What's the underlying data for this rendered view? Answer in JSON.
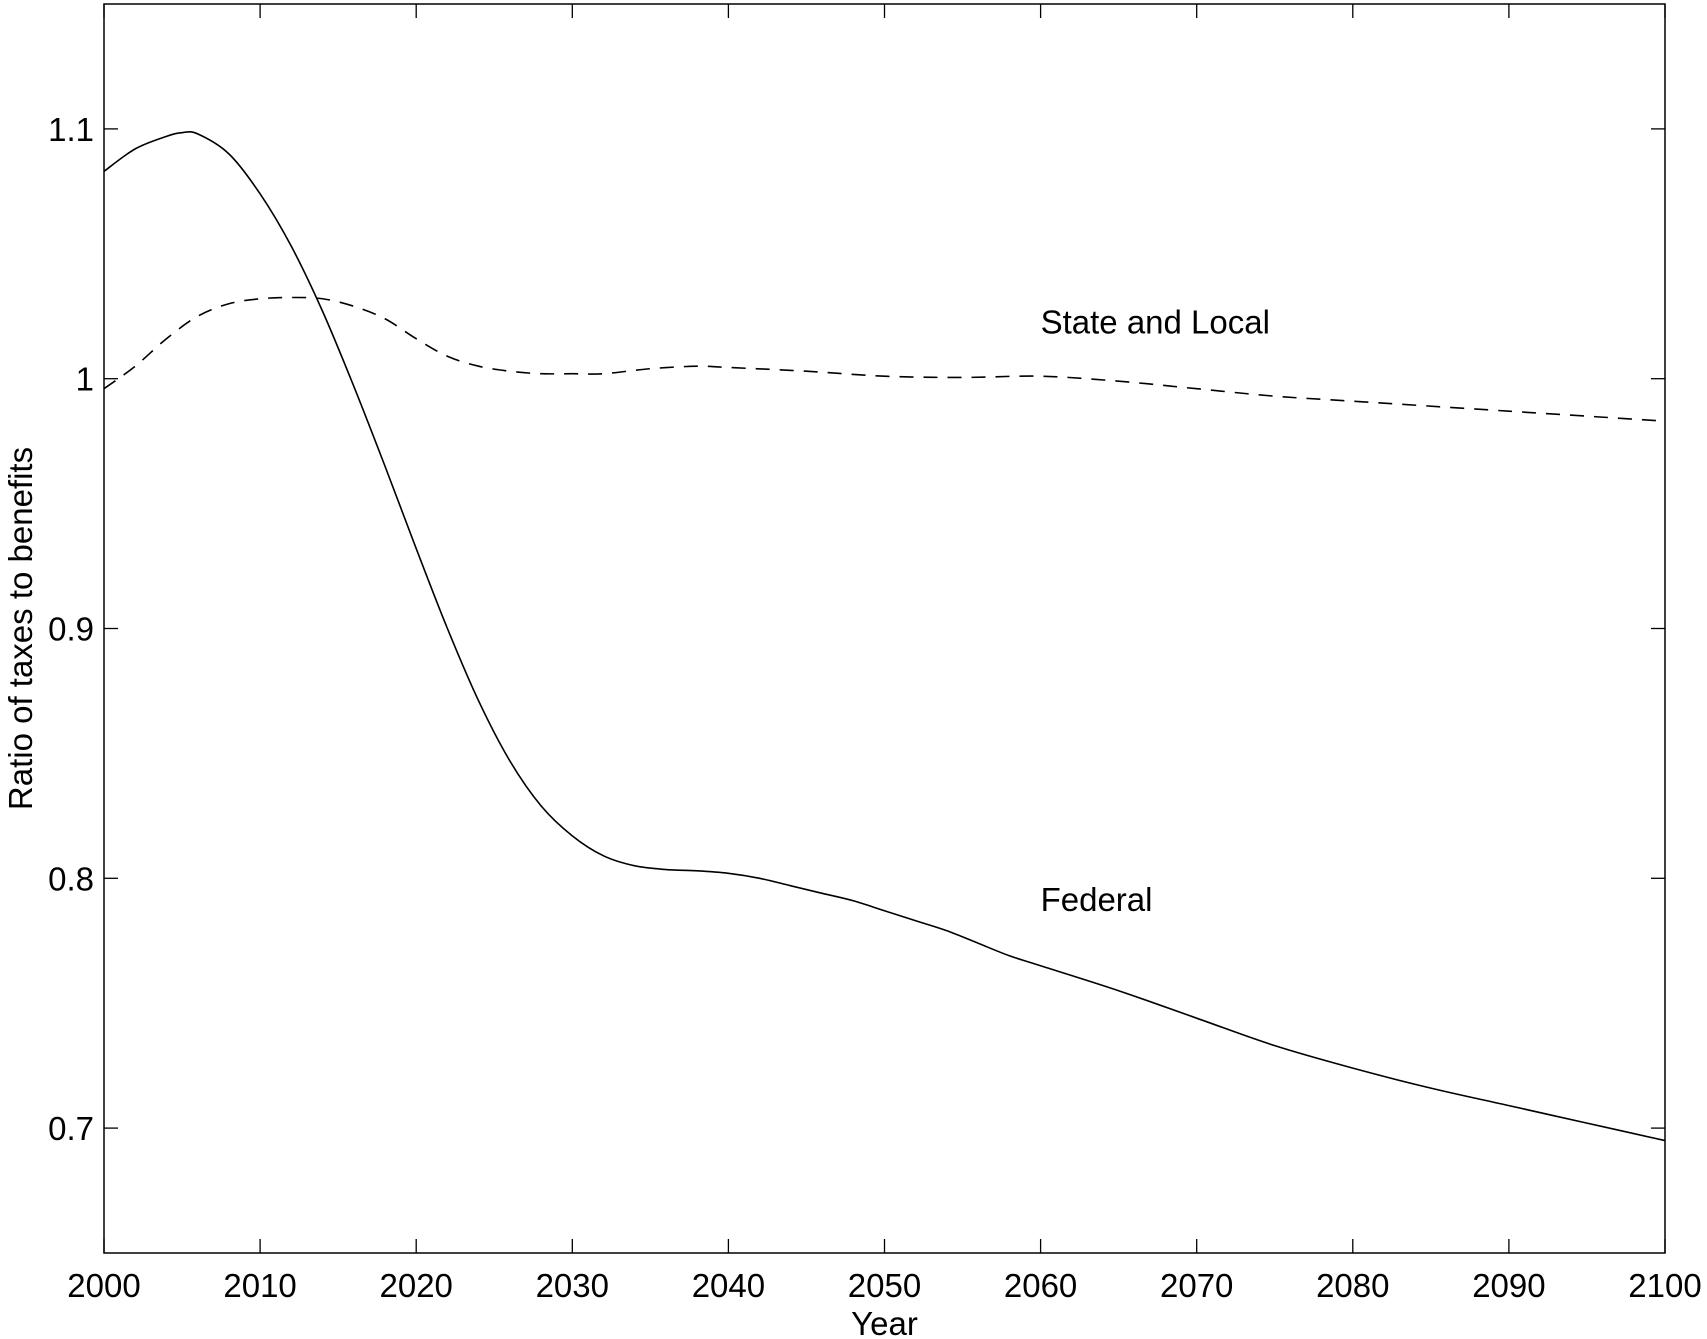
{
  "chart_data": {
    "type": "line",
    "title": "",
    "xlabel": "Year",
    "ylabel": "Ratio of taxes to benefits",
    "xlim": [
      2000,
      2100
    ],
    "ylim": [
      0.65,
      1.15
    ],
    "xticks": [
      2000,
      2010,
      2020,
      2030,
      2040,
      2050,
      2060,
      2070,
      2080,
      2090,
      2100
    ],
    "xtick_labels": [
      "2000",
      "2010",
      "2020",
      "2030",
      "2040",
      "2050",
      "2060",
      "2070",
      "2080",
      "2090",
      "2100"
    ],
    "yticks": [
      0.7,
      0.8,
      0.9,
      1.0,
      1.1
    ],
    "ytick_labels": [
      "0.7",
      "0.8",
      "0.9",
      "1",
      "1.1"
    ],
    "grid": false,
    "legend": "none",
    "series": [
      {
        "key": "federal",
        "color": "#000000",
        "dash": "solid",
        "x": [
          2000,
          2002,
          2004,
          2005,
          2006,
          2008,
          2010,
          2012,
          2014,
          2016,
          2018,
          2020,
          2022,
          2024,
          2026,
          2028,
          2030,
          2032,
          2034,
          2036,
          2038,
          2040,
          2042,
          2044,
          2046,
          2048,
          2050,
          2052,
          2054,
          2056,
          2058,
          2060,
          2065,
          2070,
          2075,
          2080,
          2085,
          2090,
          2095,
          2100
        ],
        "y": [
          1.083,
          1.092,
          1.097,
          1.0985,
          1.098,
          1.09,
          1.074,
          1.053,
          1.027,
          0.997,
          0.965,
          0.932,
          0.9,
          0.871,
          0.847,
          0.829,
          0.817,
          0.809,
          0.805,
          0.8035,
          0.803,
          0.802,
          0.8,
          0.797,
          0.794,
          0.791,
          0.787,
          0.783,
          0.779,
          0.774,
          0.769,
          0.765,
          0.755,
          0.744,
          0.733,
          0.724,
          0.716,
          0.709,
          0.702,
          0.695
        ]
      },
      {
        "key": "state_local",
        "color": "#000000",
        "dash": "dashed",
        "x": [
          2000,
          2002,
          2004,
          2006,
          2008,
          2010,
          2012,
          2014,
          2016,
          2018,
          2020,
          2022,
          2024,
          2026,
          2028,
          2030,
          2032,
          2035,
          2038,
          2040,
          2045,
          2050,
          2055,
          2060,
          2065,
          2070,
          2075,
          2080,
          2090,
          2100
        ],
        "y": [
          0.996,
          1.005,
          1.016,
          1.025,
          1.03,
          1.032,
          1.0325,
          1.032,
          1.029,
          1.024,
          1.016,
          1.009,
          1.005,
          1.003,
          1.002,
          1.002,
          1.002,
          1.004,
          1.005,
          1.0045,
          1.003,
          1.001,
          1.0005,
          1.001,
          0.999,
          0.996,
          0.993,
          0.991,
          0.987,
          0.983
        ]
      }
    ],
    "annotations": [
      {
        "key": "state_local_label",
        "text": "State and Local",
        "x": 2060,
        "y": 1.018
      },
      {
        "key": "federal_label",
        "text": "Federal",
        "x": 2060,
        "y": 0.787
      }
    ]
  }
}
